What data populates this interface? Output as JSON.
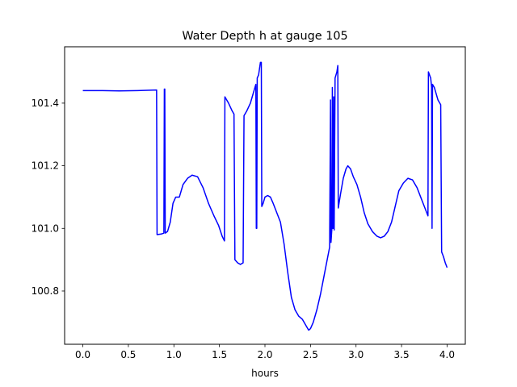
{
  "chart_data": {
    "type": "line",
    "title": "Water Depth h at gauge 105",
    "xlabel": "hours",
    "ylabel": "",
    "xlim": [
      -0.2,
      4.2
    ],
    "ylim": [
      100.63,
      101.58
    ],
    "grid": false,
    "x_ticks": [
      {
        "value": 0.0,
        "label": "0.0"
      },
      {
        "value": 0.5,
        "label": "0.5"
      },
      {
        "value": 1.0,
        "label": "1.0"
      },
      {
        "value": 1.5,
        "label": "1.5"
      },
      {
        "value": 2.0,
        "label": "2.0"
      },
      {
        "value": 2.5,
        "label": "2.5"
      },
      {
        "value": 3.0,
        "label": "3.0"
      },
      {
        "value": 3.5,
        "label": "3.5"
      },
      {
        "value": 4.0,
        "label": "4.0"
      }
    ],
    "y_ticks": [
      {
        "value": 100.8,
        "label": "100.8"
      },
      {
        "value": 101.0,
        "label": "101.0"
      },
      {
        "value": 101.2,
        "label": "101.2"
      },
      {
        "value": 101.4,
        "label": "101.4"
      }
    ],
    "series": [
      {
        "name": "",
        "color": "#0000ff",
        "points": [
          [
            0.0,
            101.44
          ],
          [
            0.2,
            101.44
          ],
          [
            0.4,
            101.439
          ],
          [
            0.6,
            101.44
          ],
          [
            0.81,
            101.442
          ],
          [
            0.815,
            100.98
          ],
          [
            0.86,
            100.982
          ],
          [
            0.89,
            100.985
          ],
          [
            0.895,
            101.445
          ],
          [
            0.9,
            101.445
          ],
          [
            0.905,
            100.985
          ],
          [
            0.93,
            100.99
          ],
          [
            0.96,
            101.02
          ],
          [
            0.99,
            101.08
          ],
          [
            1.02,
            101.1
          ],
          [
            1.06,
            101.1
          ],
          [
            1.1,
            101.14
          ],
          [
            1.15,
            101.16
          ],
          [
            1.2,
            101.17
          ],
          [
            1.26,
            101.165
          ],
          [
            1.32,
            101.13
          ],
          [
            1.38,
            101.08
          ],
          [
            1.44,
            101.04
          ],
          [
            1.49,
            101.01
          ],
          [
            1.53,
            100.975
          ],
          [
            1.555,
            100.96
          ],
          [
            1.56,
            101.42
          ],
          [
            1.6,
            101.4
          ],
          [
            1.64,
            101.375
          ],
          [
            1.66,
            101.365
          ],
          [
            1.67,
            100.9
          ],
          [
            1.7,
            100.89
          ],
          [
            1.73,
            100.885
          ],
          [
            1.76,
            100.89
          ],
          [
            1.77,
            101.36
          ],
          [
            1.8,
            101.375
          ],
          [
            1.84,
            101.4
          ],
          [
            1.87,
            101.43
          ],
          [
            1.9,
            101.46
          ],
          [
            1.905,
            101.0
          ],
          [
            1.91,
            101.0
          ],
          [
            1.915,
            101.48
          ],
          [
            1.93,
            101.49
          ],
          [
            1.95,
            101.53
          ],
          [
            1.96,
            101.53
          ],
          [
            1.965,
            101.07
          ],
          [
            1.98,
            101.08
          ],
          [
            2.0,
            101.1
          ],
          [
            2.03,
            101.105
          ],
          [
            2.06,
            101.1
          ],
          [
            2.09,
            101.08
          ],
          [
            2.13,
            101.05
          ],
          [
            2.17,
            101.02
          ],
          [
            2.21,
            100.95
          ],
          [
            2.25,
            100.86
          ],
          [
            2.29,
            100.78
          ],
          [
            2.33,
            100.74
          ],
          [
            2.37,
            100.72
          ],
          [
            2.41,
            100.71
          ],
          [
            2.45,
            100.69
          ],
          [
            2.48,
            100.675
          ],
          [
            2.5,
            100.68
          ],
          [
            2.53,
            100.7
          ],
          [
            2.57,
            100.74
          ],
          [
            2.61,
            100.79
          ],
          [
            2.65,
            100.85
          ],
          [
            2.69,
            100.91
          ],
          [
            2.71,
            100.94
          ],
          [
            2.72,
            101.41
          ],
          [
            2.725,
            100.955
          ],
          [
            2.735,
            101.0
          ],
          [
            2.74,
            101.45
          ],
          [
            2.745,
            101.0
          ],
          [
            2.75,
            101.0
          ],
          [
            2.755,
            101.42
          ],
          [
            2.76,
            100.995
          ],
          [
            2.77,
            101.48
          ],
          [
            2.79,
            101.5
          ],
          [
            2.8,
            101.52
          ],
          [
            2.805,
            101.065
          ],
          [
            2.83,
            101.11
          ],
          [
            2.86,
            101.16
          ],
          [
            2.89,
            101.19
          ],
          [
            2.91,
            101.2
          ],
          [
            2.94,
            101.19
          ],
          [
            2.97,
            101.165
          ],
          [
            3.01,
            101.14
          ],
          [
            3.05,
            101.1
          ],
          [
            3.09,
            101.05
          ],
          [
            3.13,
            101.015
          ],
          [
            3.18,
            100.99
          ],
          [
            3.23,
            100.975
          ],
          [
            3.27,
            100.97
          ],
          [
            3.31,
            100.975
          ],
          [
            3.35,
            100.99
          ],
          [
            3.39,
            101.02
          ],
          [
            3.43,
            101.07
          ],
          [
            3.47,
            101.12
          ],
          [
            3.52,
            101.145
          ],
          [
            3.57,
            101.16
          ],
          [
            3.62,
            101.155
          ],
          [
            3.67,
            101.13
          ],
          [
            3.71,
            101.1
          ],
          [
            3.75,
            101.07
          ],
          [
            3.79,
            101.04
          ],
          [
            3.795,
            101.5
          ],
          [
            3.82,
            101.48
          ],
          [
            3.83,
            101.45
          ],
          [
            3.835,
            101.0
          ],
          [
            3.84,
            101.46
          ],
          [
            3.86,
            101.45
          ],
          [
            3.88,
            101.43
          ],
          [
            3.9,
            101.41
          ],
          [
            3.93,
            101.395
          ],
          [
            3.94,
            100.925
          ],
          [
            3.96,
            100.91
          ],
          [
            3.98,
            100.89
          ],
          [
            4.0,
            100.875
          ]
        ]
      }
    ]
  }
}
